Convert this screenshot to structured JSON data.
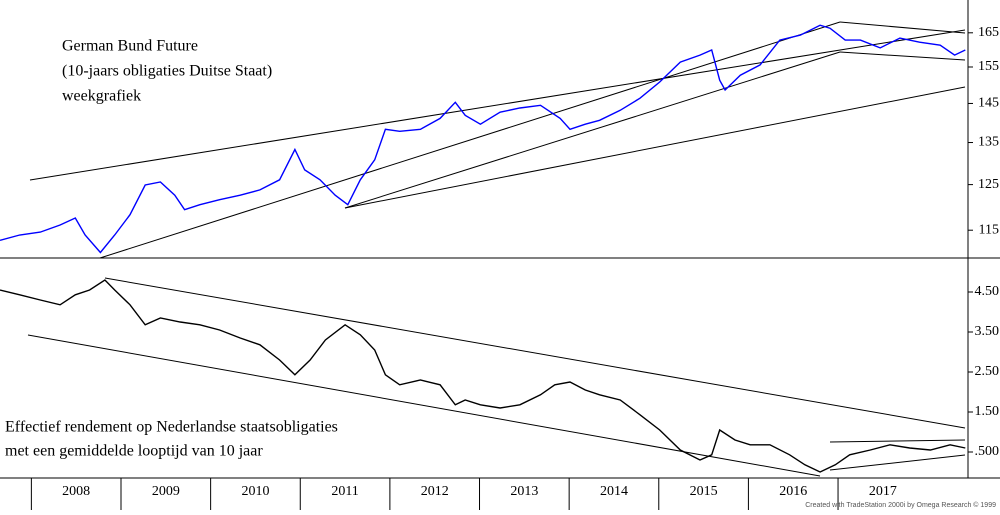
{
  "chart_data": [
    {
      "type": "line",
      "log": true,
      "xlim": [
        2007.65,
        2018.45
      ],
      "ylim": [
        109.3,
        175.2
      ],
      "yticks": [
        115,
        125,
        135,
        145,
        155,
        165
      ],
      "annotation": [
        "German Bund Future",
        "(10-jaars obligaties Duitse Staat)",
        "weekgrafiek"
      ],
      "x": [
        2007.65,
        2007.87,
        2008.1,
        2008.32,
        2008.49,
        2008.6,
        2008.77,
        2008.93,
        2009.1,
        2009.27,
        2009.44,
        2009.6,
        2009.71,
        2009.88,
        2010.1,
        2010.33,
        2010.55,
        2010.77,
        2010.94,
        2011.05,
        2011.22,
        2011.39,
        2011.53,
        2011.67,
        2011.83,
        2011.95,
        2012.11,
        2012.34,
        2012.56,
        2012.73,
        2012.84,
        2013.01,
        2013.23,
        2013.45,
        2013.68,
        2013.9,
        2014.01,
        2014.18,
        2014.34,
        2014.57,
        2014.79,
        2015.01,
        2015.24,
        2015.46,
        2015.59,
        2015.68,
        2015.74,
        2015.91,
        2016.13,
        2016.35,
        2016.58,
        2016.8,
        2016.91,
        2017.08,
        2017.25,
        2017.47,
        2017.69,
        2017.91,
        2018.14,
        2018.3,
        2018.42
      ],
      "series": [
        {
          "color": "#0000ff",
          "values": [
            112.9,
            114.0,
            114.6,
            116.1,
            117.6,
            114.0,
            110.4,
            114.0,
            118.3,
            124.9,
            125.6,
            122.6,
            119.4,
            120.5,
            121.6,
            122.6,
            123.8,
            126.1,
            133.3,
            128.4,
            126.1,
            122.6,
            120.5,
            126.1,
            130.8,
            138.3,
            137.8,
            138.3,
            141.1,
            145.3,
            141.9,
            139.6,
            142.7,
            143.8,
            144.5,
            141.1,
            138.3,
            139.6,
            140.6,
            143.2,
            146.4,
            150.8,
            156.4,
            158.4,
            159.9,
            151.3,
            148.6,
            152.7,
            155.6,
            162.8,
            164.3,
            167.3,
            166.4,
            162.8,
            162.8,
            160.5,
            163.4,
            162.2,
            161.3,
            158.4,
            159.9
          ]
        }
      ]
    },
    {
      "type": "line",
      "xlim": [
        2007.65,
        2018.45
      ],
      "ylim": [
        -0.15,
        5.35
      ],
      "yticks": [
        {
          "value": 4.5,
          "label": "4.50"
        },
        {
          "value": 3.5,
          "label": "3.50"
        },
        {
          "value": 2.5,
          "label": "2.50"
        },
        {
          "value": 1.5,
          "label": "1.50"
        },
        {
          "value": 0.5,
          "label": ".500"
        }
      ],
      "xticks": [
        2008,
        2009,
        2010,
        2011,
        2012,
        2013,
        2014,
        2015,
        2016,
        2017
      ],
      "annotation": [
        "Effectief rendement op Nederlandse staatsobligaties",
        "met een gemiddelde looptijd van 10 jaar"
      ],
      "x": [
        2007.65,
        2007.87,
        2008.1,
        2008.32,
        2008.49,
        2008.65,
        2008.82,
        2008.93,
        2009.1,
        2009.27,
        2009.44,
        2009.66,
        2009.88,
        2010.1,
        2010.33,
        2010.55,
        2010.77,
        2010.94,
        2011.11,
        2011.28,
        2011.5,
        2011.67,
        2011.83,
        2011.95,
        2012.11,
        2012.34,
        2012.56,
        2012.73,
        2012.84,
        2013.01,
        2013.23,
        2013.45,
        2013.68,
        2013.84,
        2014.01,
        2014.18,
        2014.34,
        2014.57,
        2014.79,
        2015.01,
        2015.24,
        2015.46,
        2015.59,
        2015.68,
        2015.85,
        2016.02,
        2016.24,
        2016.46,
        2016.63,
        2016.8,
        2016.97,
        2017.13,
        2017.36,
        2017.58,
        2017.8,
        2018.03,
        2018.25,
        2018.42
      ],
      "series": [
        {
          "color": "#000000",
          "values": [
            4.55,
            4.43,
            4.3,
            4.18,
            4.43,
            4.55,
            4.8,
            4.55,
            4.18,
            3.68,
            3.85,
            3.75,
            3.68,
            3.55,
            3.35,
            3.18,
            2.8,
            2.43,
            2.8,
            3.3,
            3.68,
            3.43,
            3.05,
            2.43,
            2.18,
            2.3,
            2.18,
            1.68,
            1.8,
            1.68,
            1.6,
            1.68,
            1.93,
            2.18,
            2.25,
            2.05,
            1.93,
            1.8,
            1.43,
            1.05,
            0.55,
            0.3,
            0.43,
            1.05,
            0.8,
            0.68,
            0.68,
            0.43,
            0.18,
            0.0,
            0.18,
            0.43,
            0.55,
            0.68,
            0.6,
            0.55,
            0.68,
            0.6
          ]
        }
      ]
    }
  ],
  "credit": "Created with TradeStation 2000i by Omega Research © 1999"
}
